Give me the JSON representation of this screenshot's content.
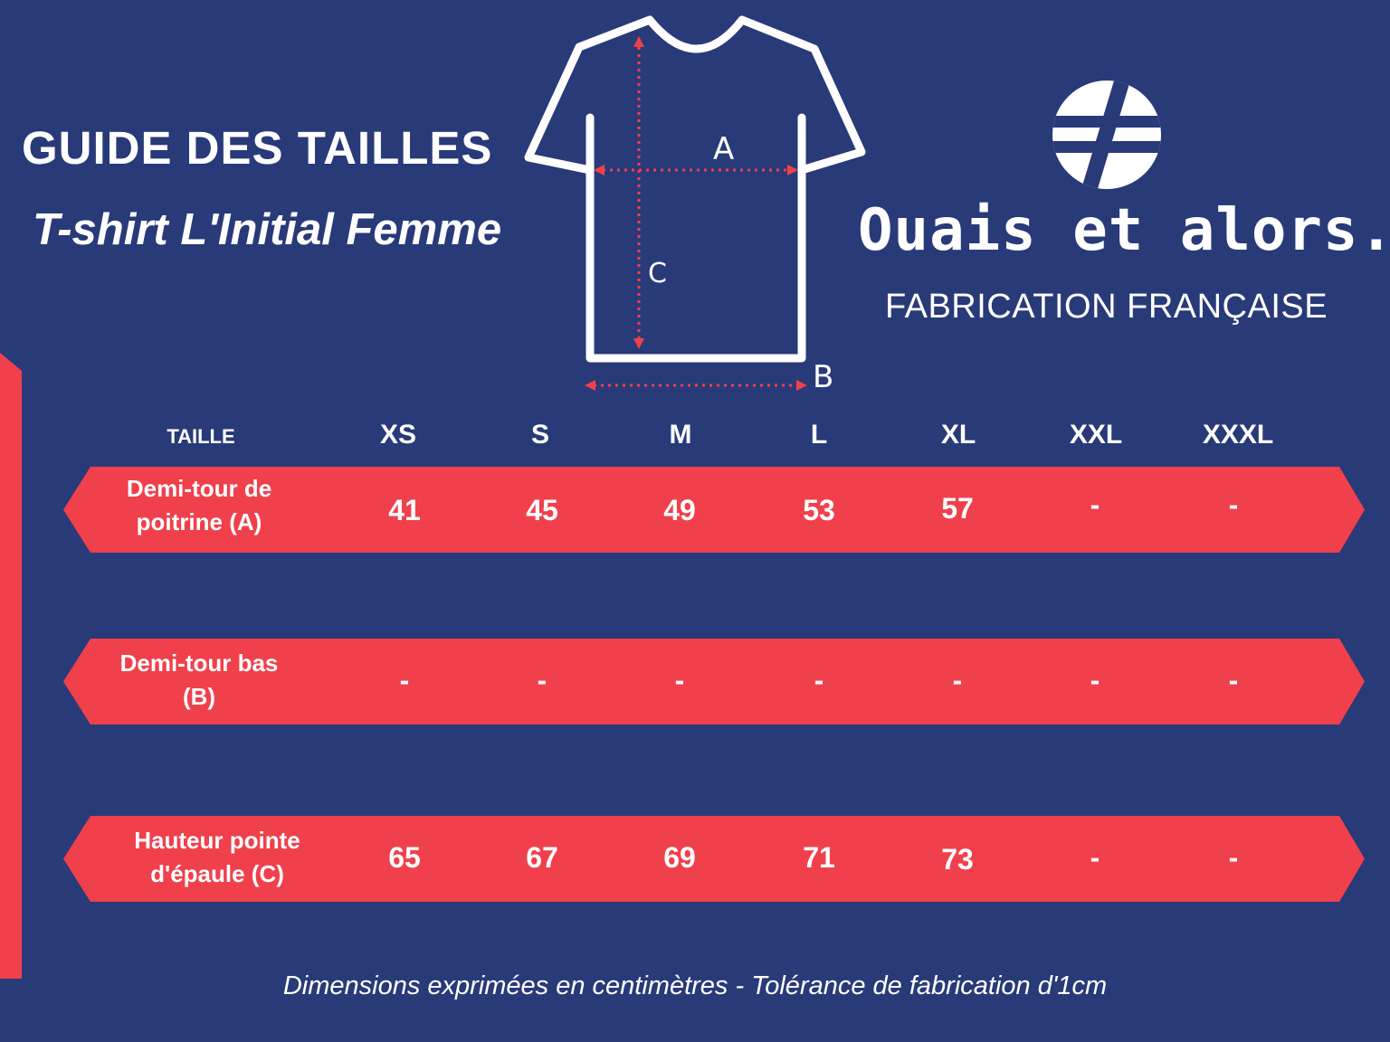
{
  "header": {
    "title": "GUIDE DES TAILLES",
    "subtitle": "T-shirt L'Initial Femme"
  },
  "diagram": {
    "label_a": "A",
    "label_b": "B",
    "label_c": "C"
  },
  "brand": {
    "name": "Ouais et alors.",
    "tagline": "FABRICATION FRANÇAISE"
  },
  "table": {
    "size_header": "TAILLE",
    "sizes": [
      "XS",
      "S",
      "M",
      "L",
      "XL",
      "XXL",
      "XXXL"
    ],
    "rows": [
      {
        "label_line1": "Demi-tour de",
        "label_line2": "poitrine (A)",
        "values": [
          "41",
          "45",
          "49",
          "53",
          "57",
          "-",
          "-"
        ]
      },
      {
        "label_line1": "Demi-tour bas",
        "label_line2": "(B)",
        "values": [
          "-",
          "-",
          "-",
          "-",
          "-",
          "-",
          "-"
        ]
      },
      {
        "label_line1": "Hauteur pointe",
        "label_line2": "d'épaule (C)",
        "values": [
          "65",
          "67",
          "69",
          "71",
          "73",
          "-",
          "-"
        ]
      }
    ]
  },
  "footnote": "Dimensions exprimées en centimètres - Tolérance de fabrication d'1cm",
  "colors": {
    "background": "#293a78",
    "accent": "#f0404c",
    "text": "#ffffff"
  }
}
